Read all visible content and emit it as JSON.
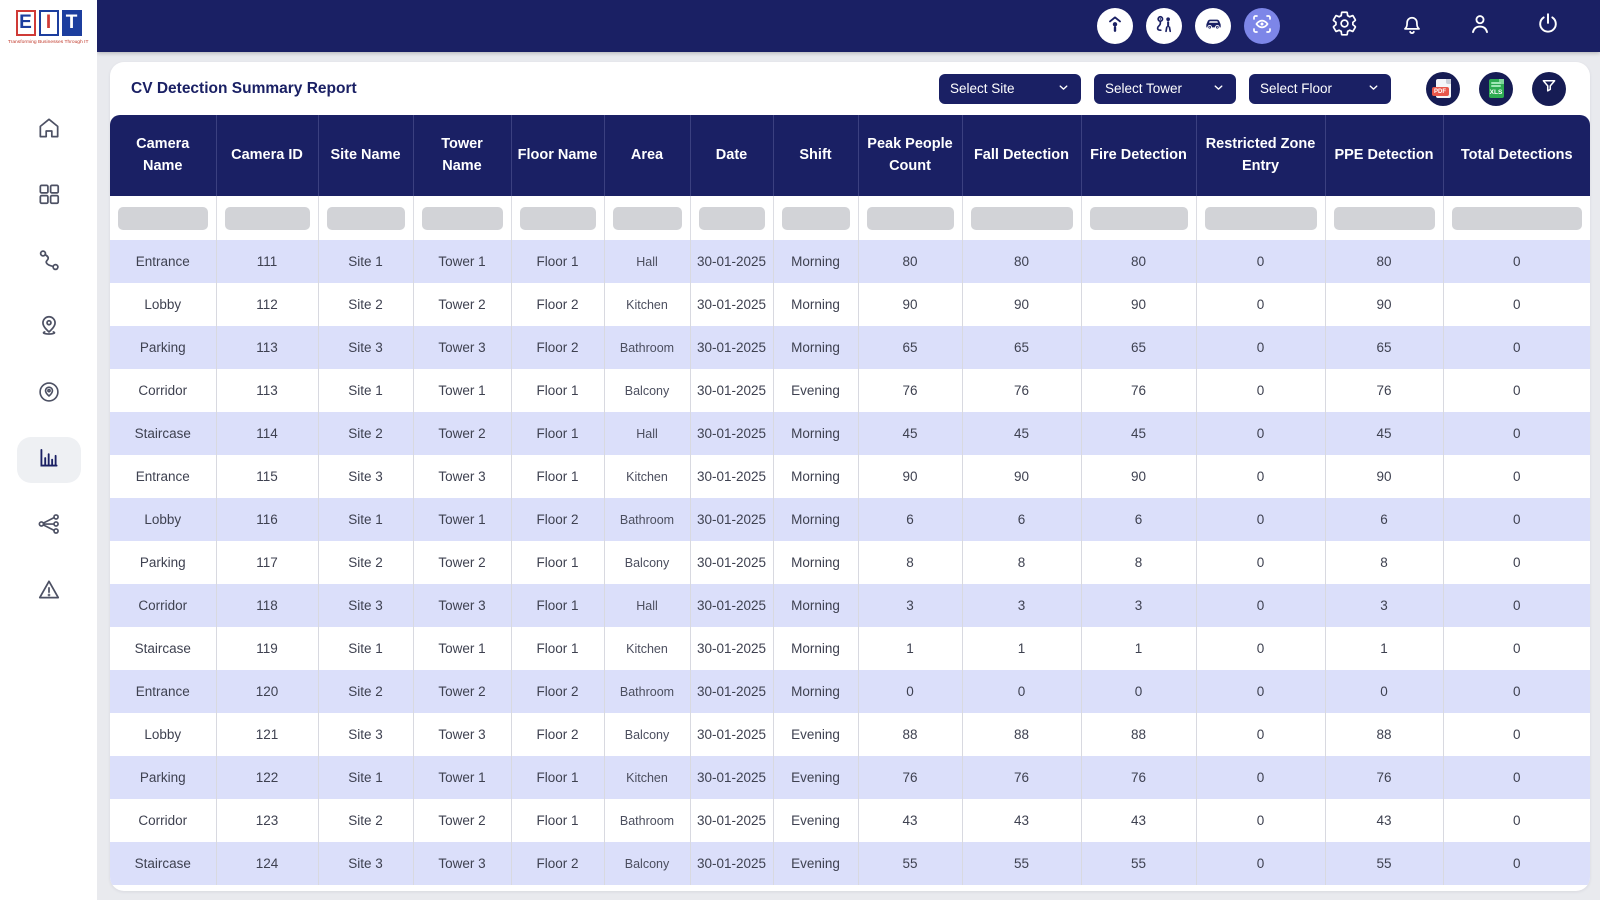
{
  "brand": {
    "letters": {
      "e": "E",
      "i": "I",
      "t": "T"
    },
    "tagline": "Transforming Businesses Through IT"
  },
  "topbar": {
    "circle_icons": [
      "person-detection",
      "people-tracking",
      "vehicle-detection",
      "cv-detection"
    ],
    "active_icon": "cv-detection",
    "line_icons": [
      "settings",
      "notifications",
      "user-profile",
      "power"
    ]
  },
  "sidebar": {
    "items": [
      "home",
      "dashboard-grid",
      "route",
      "location-pin",
      "geofence",
      "reports-chart",
      "network",
      "alerts"
    ],
    "active_item": "reports-chart"
  },
  "report": {
    "title": "CV Detection Summary Report",
    "filters": [
      {
        "label": "Select Site"
      },
      {
        "label": "Select Tower"
      },
      {
        "label": "Select Floor"
      }
    ],
    "export": {
      "pdf_label": "PDF",
      "xls_label": "XLS"
    }
  },
  "colors": {
    "navy": "#1a2064",
    "row_alt": "#dbdffa",
    "active_icon_bg": "#7d86e8",
    "pdf_red": "#e8574b",
    "xls_green": "#2eab52",
    "filter_box_gray": "#d2d3d7",
    "page_bg": "#e9eaee"
  },
  "table": {
    "columns": [
      {
        "key": "camera_name",
        "label": "Camera Name"
      },
      {
        "key": "camera_id",
        "label": "Camera ID"
      },
      {
        "key": "site_name",
        "label": "Site Name"
      },
      {
        "key": "tower_name",
        "label": "Tower Name"
      },
      {
        "key": "floor_name",
        "label": "Floor Name"
      },
      {
        "key": "area",
        "label": "Area"
      },
      {
        "key": "date",
        "label": "Date"
      },
      {
        "key": "shift",
        "label": "Shift"
      },
      {
        "key": "peak_people_count",
        "label": "Peak People Count"
      },
      {
        "key": "fall_detection",
        "label": "Fall Detection"
      },
      {
        "key": "fire_detection",
        "label": "Fire Detection"
      },
      {
        "key": "restricted_zone_entry",
        "label": "Restricted Zone Entry"
      },
      {
        "key": "ppe_detection",
        "label": "PPE Detection"
      },
      {
        "key": "total_detections",
        "label": "Total Detections"
      }
    ],
    "rows": [
      {
        "camera_name": "Entrance",
        "camera_id": "111",
        "site_name": "Site 1",
        "tower_name": "Tower 1",
        "floor_name": "Floor 1",
        "area": "Hall",
        "date": "30-01-2025",
        "shift": "Morning",
        "peak_people_count": "80",
        "fall_detection": "80",
        "fire_detection": "80",
        "restricted_zone_entry": "0",
        "ppe_detection": "80",
        "total_detections": "0"
      },
      {
        "camera_name": "Lobby",
        "camera_id": "112",
        "site_name": "Site 2",
        "tower_name": "Tower 2",
        "floor_name": "Floor 2",
        "area": "Kitchen",
        "date": "30-01-2025",
        "shift": "Morning",
        "peak_people_count": "90",
        "fall_detection": "90",
        "fire_detection": "90",
        "restricted_zone_entry": "0",
        "ppe_detection": "90",
        "total_detections": "0"
      },
      {
        "camera_name": "Parking",
        "camera_id": "113",
        "site_name": "Site 3",
        "tower_name": "Tower 3",
        "floor_name": "Floor 2",
        "area": "Bathroom",
        "date": "30-01-2025",
        "shift": "Morning",
        "peak_people_count": "65",
        "fall_detection": "65",
        "fire_detection": "65",
        "restricted_zone_entry": "0",
        "ppe_detection": "65",
        "total_detections": "0"
      },
      {
        "camera_name": "Corridor",
        "camera_id": "113",
        "site_name": "Site 1",
        "tower_name": "Tower 1",
        "floor_name": "Floor 1",
        "area": "Balcony",
        "date": "30-01-2025",
        "shift": "Evening",
        "peak_people_count": "76",
        "fall_detection": "76",
        "fire_detection": "76",
        "restricted_zone_entry": "0",
        "ppe_detection": "76",
        "total_detections": "0"
      },
      {
        "camera_name": "Staircase",
        "camera_id": "114",
        "site_name": "Site 2",
        "tower_name": "Tower 2",
        "floor_name": "Floor 1",
        "area": "Hall",
        "date": "30-01-2025",
        "shift": "Morning",
        "peak_people_count": "45",
        "fall_detection": "45",
        "fire_detection": "45",
        "restricted_zone_entry": "0",
        "ppe_detection": "45",
        "total_detections": "0"
      },
      {
        "camera_name": "Entrance",
        "camera_id": "115",
        "site_name": "Site 3",
        "tower_name": "Tower 3",
        "floor_name": "Floor 1",
        "area": "Kitchen",
        "date": "30-01-2025",
        "shift": "Morning",
        "peak_people_count": "90",
        "fall_detection": "90",
        "fire_detection": "90",
        "restricted_zone_entry": "0",
        "ppe_detection": "90",
        "total_detections": "0"
      },
      {
        "camera_name": "Lobby",
        "camera_id": "116",
        "site_name": "Site 1",
        "tower_name": "Tower 1",
        "floor_name": "Floor 2",
        "area": "Bathroom",
        "date": "30-01-2025",
        "shift": "Morning",
        "peak_people_count": "6",
        "fall_detection": "6",
        "fire_detection": "6",
        "restricted_zone_entry": "0",
        "ppe_detection": "6",
        "total_detections": "0"
      },
      {
        "camera_name": "Parking",
        "camera_id": "117",
        "site_name": "Site 2",
        "tower_name": "Tower 2",
        "floor_name": "Floor 1",
        "area": "Balcony",
        "date": "30-01-2025",
        "shift": "Morning",
        "peak_people_count": "8",
        "fall_detection": "8",
        "fire_detection": "8",
        "restricted_zone_entry": "0",
        "ppe_detection": "8",
        "total_detections": "0"
      },
      {
        "camera_name": "Corridor",
        "camera_id": "118",
        "site_name": "Site 3",
        "tower_name": "Tower 3",
        "floor_name": "Floor 1",
        "area": "Hall",
        "date": "30-01-2025",
        "shift": "Morning",
        "peak_people_count": "3",
        "fall_detection": "3",
        "fire_detection": "3",
        "restricted_zone_entry": "0",
        "ppe_detection": "3",
        "total_detections": "0"
      },
      {
        "camera_name": "Staircase",
        "camera_id": "119",
        "site_name": "Site 1",
        "tower_name": "Tower 1",
        "floor_name": "Floor 1",
        "area": "Kitchen",
        "date": "30-01-2025",
        "shift": "Morning",
        "peak_people_count": "1",
        "fall_detection": "1",
        "fire_detection": "1",
        "restricted_zone_entry": "0",
        "ppe_detection": "1",
        "total_detections": "0"
      },
      {
        "camera_name": "Entrance",
        "camera_id": "120",
        "site_name": "Site 2",
        "tower_name": "Tower 2",
        "floor_name": "Floor 2",
        "area": "Bathroom",
        "date": "30-01-2025",
        "shift": "Morning",
        "peak_people_count": "0",
        "fall_detection": "0",
        "fire_detection": "0",
        "restricted_zone_entry": "0",
        "ppe_detection": "0",
        "total_detections": "0"
      },
      {
        "camera_name": "Lobby",
        "camera_id": "121",
        "site_name": "Site 3",
        "tower_name": "Tower 3",
        "floor_name": "Floor 2",
        "area": "Balcony",
        "date": "30-01-2025",
        "shift": "Evening",
        "peak_people_count": "88",
        "fall_detection": "88",
        "fire_detection": "88",
        "restricted_zone_entry": "0",
        "ppe_detection": "88",
        "total_detections": "0"
      },
      {
        "camera_name": "Parking",
        "camera_id": "122",
        "site_name": "Site 1",
        "tower_name": "Tower 1",
        "floor_name": "Floor 1",
        "area": "Kitchen",
        "date": "30-01-2025",
        "shift": "Evening",
        "peak_people_count": "76",
        "fall_detection": "76",
        "fire_detection": "76",
        "restricted_zone_entry": "0",
        "ppe_detection": "76",
        "total_detections": "0"
      },
      {
        "camera_name": "Corridor",
        "camera_id": "123",
        "site_name": "Site 2",
        "tower_name": "Tower 2",
        "floor_name": "Floor 1",
        "area": "Bathroom",
        "date": "30-01-2025",
        "shift": "Evening",
        "peak_people_count": "43",
        "fall_detection": "43",
        "fire_detection": "43",
        "restricted_zone_entry": "0",
        "ppe_detection": "43",
        "total_detections": "0"
      },
      {
        "camera_name": "Staircase",
        "camera_id": "124",
        "site_name": "Site 3",
        "tower_name": "Tower 3",
        "floor_name": "Floor 2",
        "area": "Balcony",
        "date": "30-01-2025",
        "shift": "Evening",
        "peak_people_count": "55",
        "fall_detection": "55",
        "fire_detection": "55",
        "restricted_zone_entry": "0",
        "ppe_detection": "55",
        "total_detections": "0"
      }
    ]
  }
}
